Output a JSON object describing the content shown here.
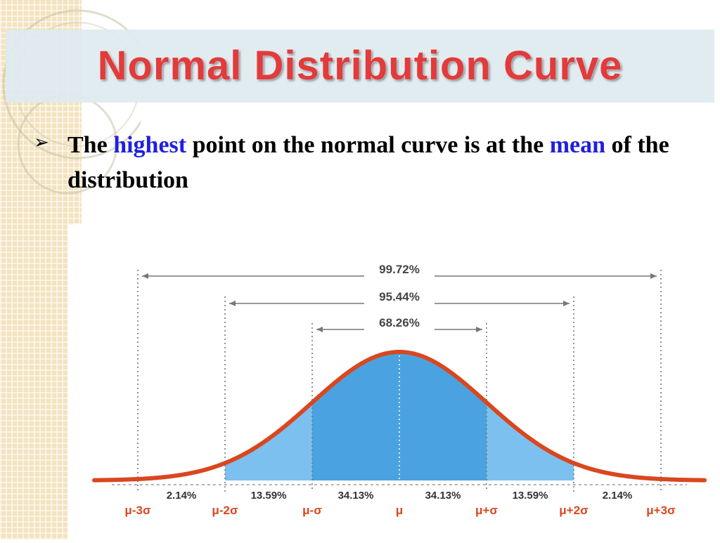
{
  "title": "Normal Distribution Curve",
  "bullet": {
    "part1": "The",
    "highlight1": "highest",
    "part2": "point on the normal curve is at the",
    "highlight2": "mean",
    "part3": "of the distribution"
  },
  "colors": {
    "title": "#e23b3b",
    "highlight": "#1f1fe0",
    "curve": "#d9471f",
    "fill_inner": "#4aa3e0",
    "fill_outer": "#7cc0f0"
  },
  "chart_data": {
    "type": "area",
    "curve": "normal",
    "mean": 0,
    "sd": 1,
    "x_range": [
      -3.5,
      3.5
    ],
    "tick_labels": [
      "μ-3σ",
      "μ-2σ",
      "μ-σ",
      "μ",
      "μ+σ",
      "μ+2σ",
      "μ+3σ"
    ],
    "segments": [
      {
        "from": -3,
        "to": -2,
        "label": "2.14%"
      },
      {
        "from": -2,
        "to": -1,
        "label": "13.59%"
      },
      {
        "from": -1,
        "to": 0,
        "label": "34.13%"
      },
      {
        "from": 0,
        "to": 1,
        "label": "34.13%"
      },
      {
        "from": 1,
        "to": 2,
        "label": "13.59%"
      },
      {
        "from": 2,
        "to": 3,
        "label": "2.14%"
      }
    ],
    "ranges": [
      {
        "from": -3,
        "to": 3,
        "label": "99.72%"
      },
      {
        "from": -2,
        "to": 2,
        "label": "95.44%"
      },
      {
        "from": -1,
        "to": 1,
        "label": "68.26%"
      }
    ]
  }
}
